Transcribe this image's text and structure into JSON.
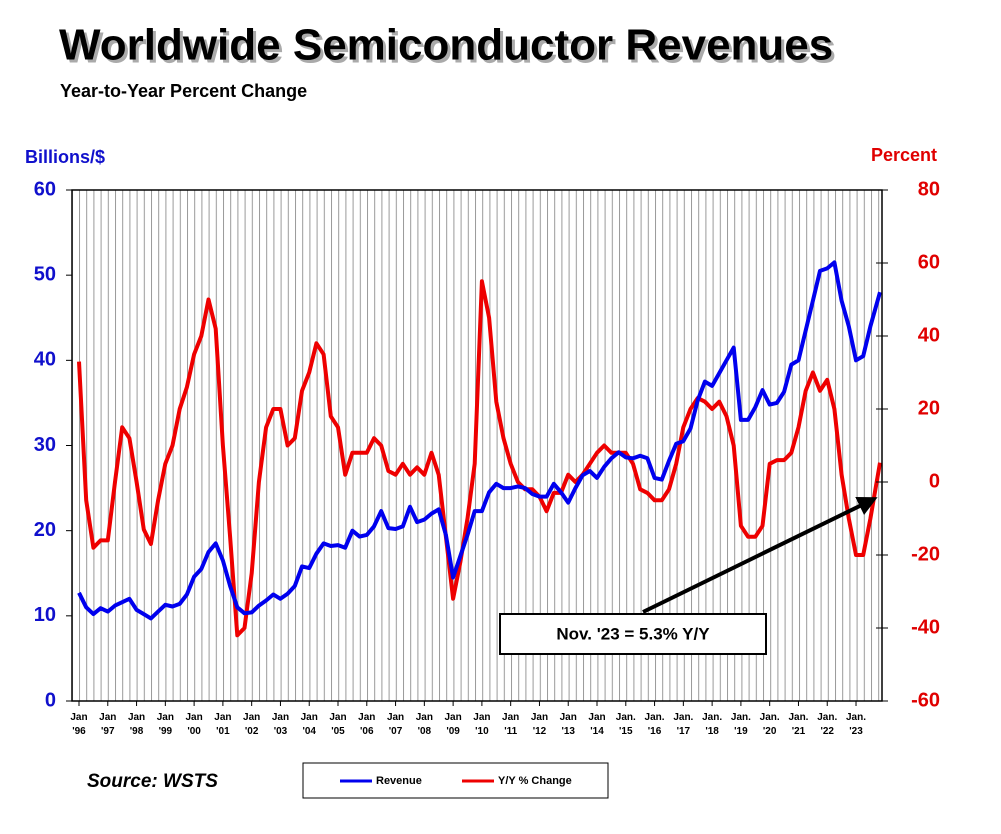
{
  "chart_data": {
    "type": "line",
    "title": "Worldwide Semiconductor Revenues",
    "subtitle": "Year-to-Year Percent Change",
    "y_label": "Billions/$",
    "y2_label": "Percent",
    "source": "Source: WSTS",
    "annotation": "Nov. '23 = 5.3% Y/Y",
    "legend": "bottom",
    "x": [
      "1996-01",
      "1996-04",
      "1996-07",
      "1996-10",
      "1997-01",
      "1997-04",
      "1997-07",
      "1997-10",
      "1998-01",
      "1998-04",
      "1998-07",
      "1998-10",
      "1999-01",
      "1999-04",
      "1999-07",
      "1999-10",
      "2000-01",
      "2000-04",
      "2000-07",
      "2000-10",
      "2001-01",
      "2001-04",
      "2001-07",
      "2001-10",
      "2002-01",
      "2002-04",
      "2002-07",
      "2002-10",
      "2003-01",
      "2003-04",
      "2003-07",
      "2003-10",
      "2004-01",
      "2004-04",
      "2004-07",
      "2004-10",
      "2005-01",
      "2005-04",
      "2005-07",
      "2005-10",
      "2006-01",
      "2006-04",
      "2006-07",
      "2006-10",
      "2007-01",
      "2007-04",
      "2007-07",
      "2007-10",
      "2008-01",
      "2008-04",
      "2008-07",
      "2008-10",
      "2009-01",
      "2009-04",
      "2009-07",
      "2009-10",
      "2010-01",
      "2010-04",
      "2010-07",
      "2010-10",
      "2011-01",
      "2011-04",
      "2011-07",
      "2011-10",
      "2012-01",
      "2012-04",
      "2012-07",
      "2012-10",
      "2013-01",
      "2013-04",
      "2013-07",
      "2013-10",
      "2014-01",
      "2014-04",
      "2014-07",
      "2014-10",
      "2015-01",
      "2015-04",
      "2015-07",
      "2015-10",
      "2016-01",
      "2016-04",
      "2016-07",
      "2016-10",
      "2017-01",
      "2017-04",
      "2017-07",
      "2017-10",
      "2018-01",
      "2018-04",
      "2018-07",
      "2018-10",
      "2019-01",
      "2019-04",
      "2019-07",
      "2019-10",
      "2020-01",
      "2020-04",
      "2020-07",
      "2020-10",
      "2021-01",
      "2021-04",
      "2021-07",
      "2021-10",
      "2022-01",
      "2022-04",
      "2022-07",
      "2022-10",
      "2023-01",
      "2023-04",
      "2023-07",
      "2023-11"
    ],
    "series": [
      {
        "name": "Revenue",
        "color": "#0000ee",
        "axis": "y",
        "values": [
          12.7,
          11,
          10.2,
          10.9,
          10.5,
          11.2,
          11.6,
          12.0,
          10.7,
          10.2,
          9.7,
          10.5,
          11.3,
          11.1,
          11.4,
          12.5,
          14.6,
          15.5,
          17.5,
          18.5,
          16.5,
          13.5,
          11.0,
          10.3,
          10.4,
          11.2,
          11.8,
          12.5,
          12.0,
          12.6,
          13.5,
          15.8,
          15.6,
          17.3,
          18.5,
          18.2,
          18.3,
          18.0,
          20.0,
          19.3,
          19.5,
          20.5,
          22.3,
          20.3,
          20.2,
          20.5,
          22.8,
          21.0,
          21.3,
          22.0,
          22.5,
          19.5,
          14.5,
          17.0,
          19.5,
          22.3,
          22.3,
          24.5,
          25.5,
          25.0,
          25.0,
          25.2,
          25.0,
          24.3,
          24.0,
          24.0,
          25.5,
          24.5,
          23.3,
          25.0,
          26.5,
          27.0,
          26.2,
          27.5,
          28.5,
          29.2,
          28.6,
          28.5,
          28.8,
          28.5,
          26.2,
          26.0,
          28.2,
          30.2,
          30.5,
          32.0,
          35.3,
          37.5,
          37.0,
          38.5,
          40.0,
          41.5,
          33.0,
          33.0,
          34.5,
          36.5,
          34.8,
          35.0,
          36.3,
          39.5,
          40.0,
          43.5,
          47.0,
          50.5,
          50.8,
          51.5,
          47.0,
          44.0,
          40.0,
          40.5,
          44.0,
          48.0
        ]
      },
      {
        "name": "Y/Y % Change",
        "color": "#ee0000",
        "axis": "y2",
        "values": [
          33,
          -5,
          -18,
          -16,
          -16,
          0,
          15,
          12,
          0,
          -13,
          -17,
          -5,
          5,
          10,
          20,
          26,
          35,
          40,
          50,
          42,
          10,
          -15,
          -42,
          -40,
          -25,
          0,
          15,
          20,
          20,
          10,
          12,
          25,
          30,
          38,
          35,
          18,
          15,
          2,
          8,
          8,
          8,
          12,
          10,
          3,
          2,
          5,
          2,
          4,
          2,
          8,
          2,
          -15,
          -32,
          -22,
          -10,
          5,
          55,
          45,
          22,
          12,
          5,
          0,
          -2,
          -2,
          -4,
          -8,
          -3,
          -3,
          2,
          0,
          2,
          5,
          8,
          10,
          8,
          8,
          8,
          5,
          -2,
          -3,
          -5,
          -5,
          -2,
          5,
          15,
          20,
          23,
          22,
          20,
          22,
          18,
          10,
          -12,
          -15,
          -15,
          -12,
          5,
          6,
          6,
          8,
          15,
          25,
          30,
          25,
          28,
          20,
          2,
          -10,
          -20,
          -20,
          -10,
          5.3
        ]
      }
    ],
    "xlim": [
      "1996-01",
      "2023-11"
    ],
    "xticks": [
      {
        "value": "1996-01",
        "label": "Jan '96"
      },
      {
        "value": "1997-01",
        "label": "Jan '97"
      },
      {
        "value": "1998-01",
        "label": "Jan '98"
      },
      {
        "value": "1999-01",
        "label": "Jan '99"
      },
      {
        "value": "2000-01",
        "label": "Jan '00"
      },
      {
        "value": "2001-01",
        "label": "Jan '01"
      },
      {
        "value": "2002-01",
        "label": "Jan '02"
      },
      {
        "value": "2003-01",
        "label": "Jan '03"
      },
      {
        "value": "2004-01",
        "label": "Jan '04"
      },
      {
        "value": "2005-01",
        "label": "Jan '05"
      },
      {
        "value": "2006-01",
        "label": "Jan '06"
      },
      {
        "value": "2007-01",
        "label": "Jan '07"
      },
      {
        "value": "2008-01",
        "label": "Jan '08"
      },
      {
        "value": "2009-01",
        "label": "Jan '09"
      },
      {
        "value": "2010-01",
        "label": "Jan '10"
      },
      {
        "value": "2011-01",
        "label": "Jan '11"
      },
      {
        "value": "2012-01",
        "label": "Jan '12"
      },
      {
        "value": "2013-01",
        "label": "Jan '13"
      },
      {
        "value": "2014-01",
        "label": "Jan '14"
      },
      {
        "value": "2015-01",
        "label": "Jan. '15"
      },
      {
        "value": "2016-01",
        "label": "Jan. '16"
      },
      {
        "value": "2017-01",
        "label": "Jan. '17"
      },
      {
        "value": "2018-01",
        "label": "Jan. '18"
      },
      {
        "value": "2019-01",
        "label": "Jan. '19"
      },
      {
        "value": "2020-01",
        "label": "Jan. '20"
      },
      {
        "value": "2021-01",
        "label": "Jan. '21"
      },
      {
        "value": "2022-01",
        "label": "Jan. '22"
      },
      {
        "value": "2023-01",
        "label": "Jan. '23"
      }
    ],
    "ylim": [
      0,
      60
    ],
    "yticks": [
      0,
      10,
      20,
      30,
      40,
      50,
      60
    ],
    "y2lim": [
      -60,
      80
    ],
    "y2ticks": [
      -60,
      -40,
      -20,
      0,
      20,
      40,
      60,
      80
    ]
  }
}
